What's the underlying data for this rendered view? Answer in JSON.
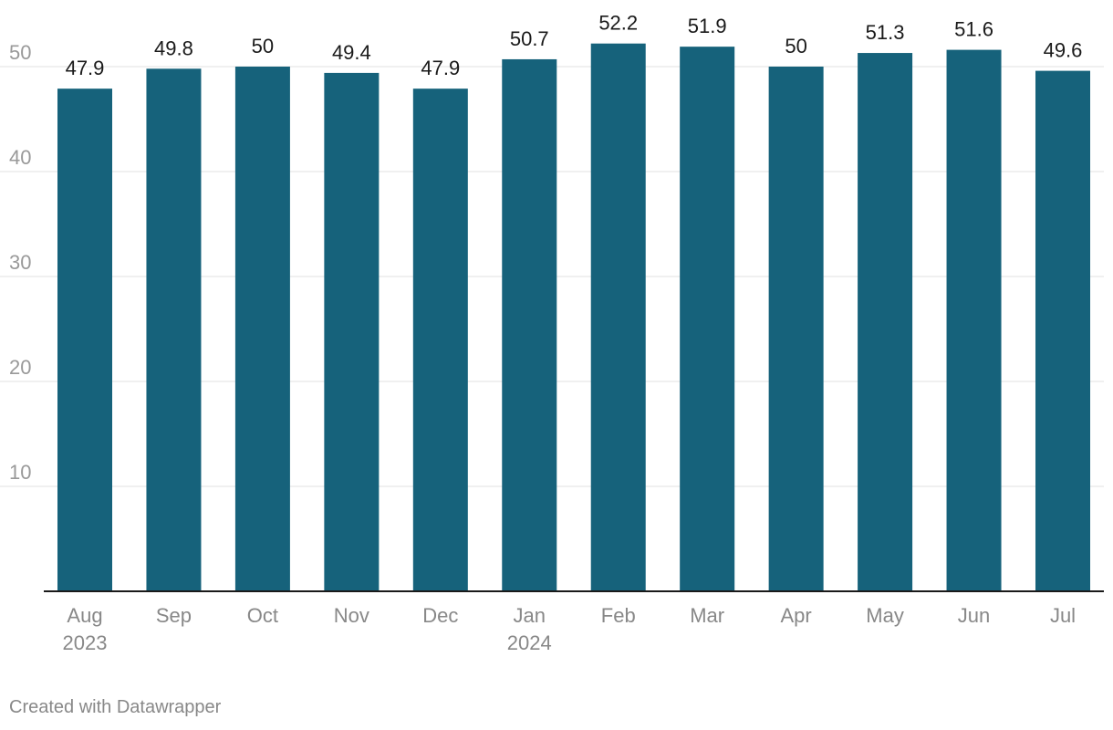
{
  "chart_data": {
    "type": "bar",
    "categories": [
      "Aug 2023",
      "Sep",
      "Oct",
      "Nov",
      "Dec",
      "Jan 2024",
      "Feb",
      "Mar",
      "Apr",
      "May",
      "Jun",
      "Jul"
    ],
    "category_lines": [
      [
        "Aug",
        "2023"
      ],
      [
        "Sep"
      ],
      [
        "Oct"
      ],
      [
        "Nov"
      ],
      [
        "Dec"
      ],
      [
        "Jan",
        "2024"
      ],
      [
        "Feb"
      ],
      [
        "Mar"
      ],
      [
        "Apr"
      ],
      [
        "May"
      ],
      [
        "Jun"
      ],
      [
        "Jul"
      ]
    ],
    "values": [
      47.9,
      49.8,
      50,
      49.4,
      47.9,
      50.7,
      52.2,
      51.9,
      50,
      51.3,
      51.6,
      49.6
    ],
    "value_labels": [
      "47.9",
      "49.8",
      "50",
      "49.4",
      "47.9",
      "50.7",
      "52.2",
      "51.9",
      "50",
      "51.3",
      "51.6",
      "49.6"
    ],
    "yticks": [
      10,
      20,
      30,
      40,
      50
    ],
    "ylim": [
      0,
      55
    ],
    "grid": true,
    "title": "",
    "xlabel": "",
    "ylabel": "",
    "bar_color": "#16627b"
  },
  "footer": {
    "credit": "Created with Datawrapper"
  }
}
